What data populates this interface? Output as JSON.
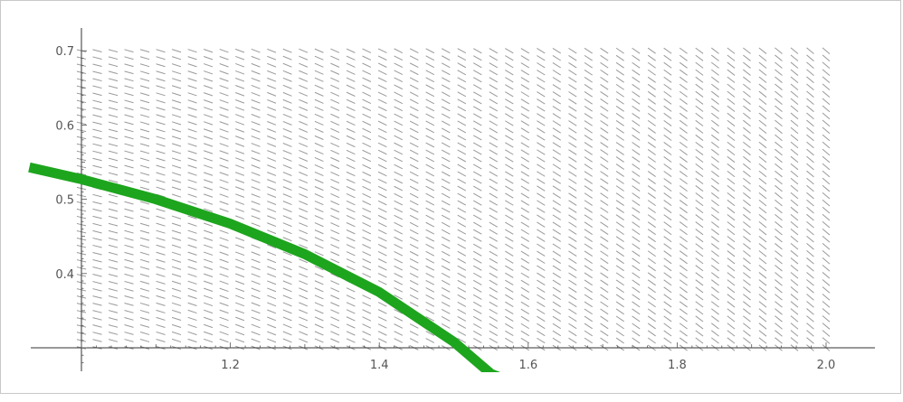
{
  "chart_data": {
    "type": "line",
    "title": "",
    "xlabel": "",
    "ylabel": "",
    "xlim": [
      0.93,
      2.15
    ],
    "ylim": [
      0.265,
      0.73
    ],
    "x_ticks": [
      1.2,
      1.4,
      1.6,
      1.8,
      2.0
    ],
    "x_tick_labels": [
      "1.2",
      "1.4",
      "1.6",
      "1.8",
      "2.0"
    ],
    "y_ticks": [
      0.4,
      0.5,
      0.6,
      0.7
    ],
    "y_tick_labels": [
      "0.4",
      "0.5",
      "0.6",
      "0.7"
    ],
    "grid": false,
    "slope_field": {
      "x_range": [
        1.0,
        2.0
      ],
      "y_range": [
        0.3,
        0.7
      ],
      "columns": 48,
      "rows": 42,
      "slope_left": -0.24,
      "slope_right": -0.85,
      "color": "#9a9a9a"
    },
    "series": [
      {
        "x": [
          0.93,
          1.0,
          1.1,
          1.2,
          1.3,
          1.4,
          1.5,
          1.55,
          1.6
        ],
        "y": [
          0.543,
          0.527,
          0.5,
          0.467,
          0.426,
          0.375,
          0.308,
          0.265,
          0.245
        ],
        "color": "#1ea51e"
      }
    ]
  }
}
